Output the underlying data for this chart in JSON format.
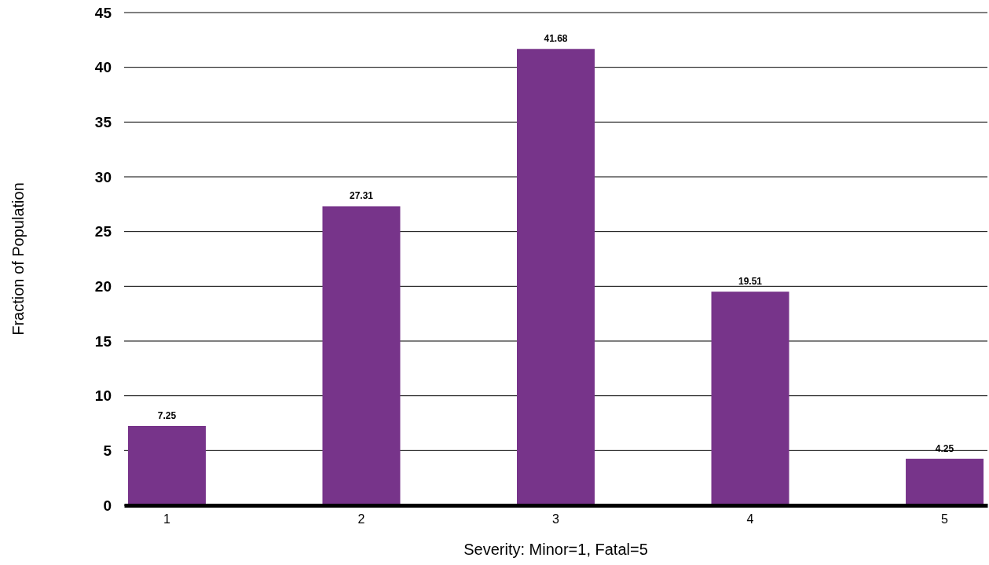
{
  "chart_data": {
    "type": "bar",
    "xlabel": "Severity: Minor=1, Fatal=5",
    "ylabel": "Fraction of Population",
    "categories": [
      "1",
      "2",
      "3",
      "4",
      "5"
    ],
    "values": [
      7.25,
      27.31,
      41.68,
      19.51,
      4.25
    ],
    "color": "#77348a",
    "ylim": [
      0,
      45
    ],
    "yticks": [
      0,
      5,
      10,
      15,
      20,
      25,
      30,
      35,
      40,
      45
    ],
    "grid": "y",
    "data_labels": true
  }
}
